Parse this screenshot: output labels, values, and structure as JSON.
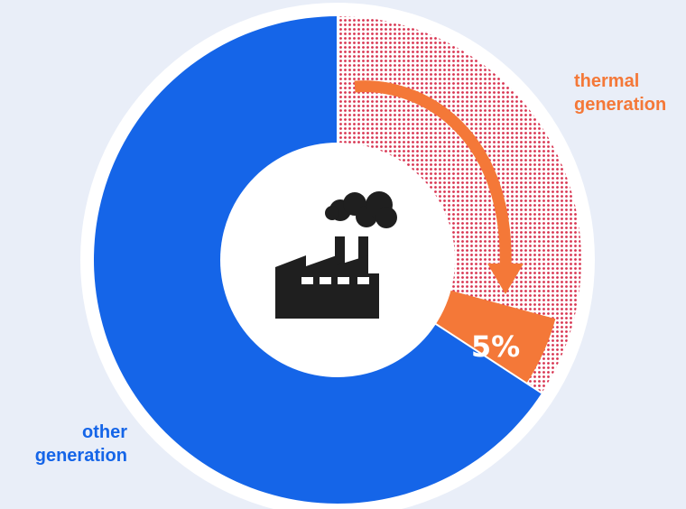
{
  "chart_data": {
    "type": "pie",
    "donut": true,
    "slices": [
      {
        "label": "other generation",
        "share": 0.658
      },
      {
        "label": "thermal generation",
        "share": 0.342
      },
      {
        "label": "",
        "share": 0.05,
        "annotation": "5%"
      }
    ],
    "data_label": "5%",
    "labels": {
      "thermal_line1": "thermal",
      "thermal_line2": "generation",
      "other_line1": "other",
      "other_line2": "generation"
    },
    "colors": {
      "other": "#1565e8",
      "thermal_dots": "#d8324f",
      "highlight": "#f47838",
      "background": "#e9eef8",
      "ring": "#ffffff",
      "icon": "#1f1f1f"
    }
  },
  "center_icon": "factory-icon"
}
